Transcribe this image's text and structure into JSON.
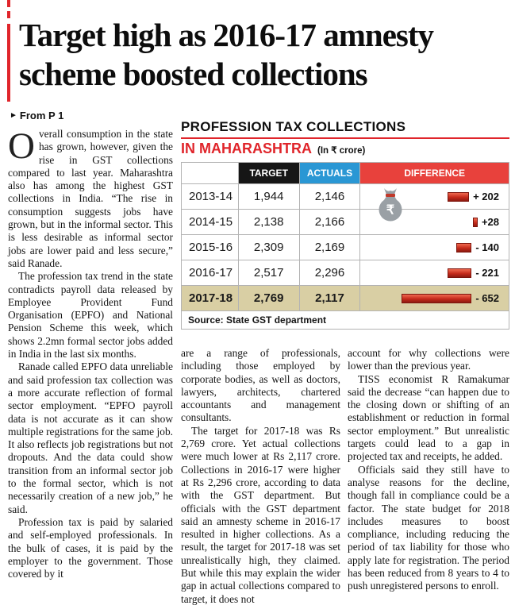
{
  "headline": {
    "line1": "Target high as 2016-17 amnesty",
    "line2": "scheme boosted collections"
  },
  "kicker": {
    "arrow_icon": "►",
    "label": "From P 1"
  },
  "table": {
    "title_line1": "PROFESSION TAX COLLECTIONS",
    "title_line2": "IN MAHARASHTRA",
    "unit_note": "(In ₹ crore)",
    "columns": [
      "",
      "TARGET",
      "ACTUALS",
      "DIFFERENCE"
    ],
    "rows": [
      {
        "year": "2013-14",
        "target": "1,944",
        "actuals": "2,146",
        "diff_label": "+ 202",
        "diff_value": 202
      },
      {
        "year": "2014-15",
        "target": "2,138",
        "actuals": "2,166",
        "diff_label": "+28",
        "diff_value": 28
      },
      {
        "year": "2015-16",
        "target": "2,309",
        "actuals": "2,169",
        "diff_label": "- 140",
        "diff_value": -140
      },
      {
        "year": "2016-17",
        "target": "2,517",
        "actuals": "2,296",
        "diff_label": "- 221",
        "diff_value": -221
      },
      {
        "year": "2017-18",
        "target": "2,769",
        "actuals": "2,117",
        "diff_label": "- 652",
        "diff_value": -652
      }
    ],
    "source": "Source: State GST department",
    "icons": {
      "money_bag_symbol": "₹"
    },
    "colors": {
      "target_header_bg": "#161616",
      "actuals_header_bg": "#2a97d4",
      "difference_header_bg": "#e8413c",
      "highlight_row_bg": "#d9cfa4",
      "bar_red": "#c52a1b",
      "accent_red": "#e0252b"
    }
  },
  "article": {
    "dropcap": "O",
    "col1": {
      "lead": "verall consumption in the state has grown, however, given the rise in GST collections compared to last year. Maharashtra also has among the highest GST collections in India. “The rise in consumption suggests jobs have grown, but in the informal sector. This is less desirable as informal sector jobs are lower paid and less secure,” said Ranade.",
      "p2": "The profession tax trend in the state contradicts payroll data released by Employee Provident Fund Organisation (EPFO) and National Pension Scheme this week, which shows 2.2mn formal sector jobs added in India in the last six months.",
      "p3": "Ranade called EPFO data unreliable and said profession tax collection was a more accurate reflection of formal sector employment. “EPFO payroll data is not accurate as it can show multiple registrations for the same job. It also reflects job registrations but not dropouts. And the data could show transition from an informal sector job to the formal sector, which is not necessarily creation of a new job,” he said.",
      "p4": "Profession tax is paid by salaried and self-employed professionals. In the bulk of cases, it is paid by the employer to the government. Those covered by it"
    },
    "col2": {
      "p1": "are a range of professionals, including those employed by corporate bodies, as well as doctors, lawyers, architects, chartered accountants and management consultants.",
      "p2": "The target for 2017-18 was Rs 2,769 crore. Yet actual collections were much lower at Rs 2,117 crore. Collections in 2016-17 were higher at Rs 2,296 crore, according to data with the GST department. But officials with the GST department said an amnesty scheme in 2016-17 resulted in higher collections. As a result, the target for 2017-18 was set unrealistically high, they claimed. But while this may explain the wider gap in actual collections compared to target, it does not"
    },
    "col3": {
      "p1": "account for why collections were lower than the previous year.",
      "p2": "TISS economist R Ramakumar said the decrease “can happen due to the closing down or shifting of an establishment or reduction in formal sector employment.” But unrealistic targets could lead to a gap in projected tax and receipts, he added.",
      "p3": "Officials said they still have to analyse reasons for the decline, though fall in compliance could be a factor. The state budget for 2018 includes measures to boost compliance, including reducing the period of tax liability for those who apply late for registration. The period has been reduced from 8 years to 4 to push unregistered persons to enroll."
    }
  }
}
